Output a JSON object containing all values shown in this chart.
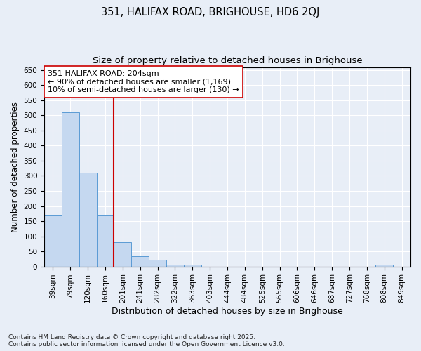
{
  "title1": "351, HALIFAX ROAD, BRIGHOUSE, HD6 2QJ",
  "title2": "Size of property relative to detached houses in Brighouse",
  "xlabel": "Distribution of detached houses by size in Brighouse",
  "ylabel": "Number of detached properties",
  "categories": [
    "39sqm",
    "79sqm",
    "120sqm",
    "160sqm",
    "201sqm",
    "241sqm",
    "282sqm",
    "322sqm",
    "363sqm",
    "403sqm",
    "444sqm",
    "484sqm",
    "525sqm",
    "565sqm",
    "606sqm",
    "646sqm",
    "687sqm",
    "727sqm",
    "768sqm",
    "808sqm",
    "849sqm"
  ],
  "values": [
    170,
    510,
    310,
    170,
    80,
    33,
    22,
    5,
    5,
    0,
    0,
    0,
    0,
    0,
    0,
    0,
    0,
    0,
    0,
    5,
    0
  ],
  "bar_color": "#c5d8f0",
  "bar_edge_color": "#5b9bd5",
  "vline_x_index": 4,
  "vline_color": "#cc0000",
  "annotation_text": "351 HALIFAX ROAD: 204sqm\n← 90% of detached houses are smaller (1,169)\n10% of semi-detached houses are larger (130) →",
  "annotation_box_color": "#ffffff",
  "annotation_box_edge": "#cc0000",
  "ylim": [
    0,
    660
  ],
  "yticks": [
    0,
    50,
    100,
    150,
    200,
    250,
    300,
    350,
    400,
    450,
    500,
    550,
    600,
    650
  ],
  "background_color": "#e8eef7",
  "plot_bg_color": "#e8eef7",
  "footer_text": "Contains HM Land Registry data © Crown copyright and database right 2025.\nContains public sector information licensed under the Open Government Licence v3.0.",
  "title1_fontsize": 10.5,
  "title2_fontsize": 9.5,
  "xlabel_fontsize": 9,
  "ylabel_fontsize": 8.5,
  "tick_fontsize": 7.5,
  "annotation_fontsize": 8,
  "footer_fontsize": 6.5
}
